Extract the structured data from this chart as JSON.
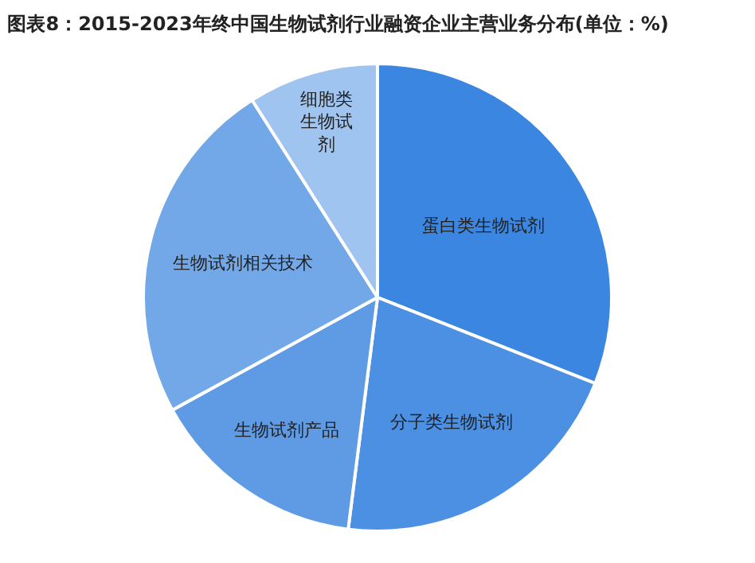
{
  "chart_data": {
    "type": "pie",
    "title": "图表8：2015-2023年终中国生物试剂行业融资企业主营业务分布(单位：%)",
    "categories": [
      "蛋白类生物试剂",
      "分子类生物试剂",
      "生物试剂产品",
      "生物试剂相关技术",
      "细胞类生物试剂"
    ],
    "values": [
      31,
      21,
      15,
      24,
      9
    ],
    "colors": [
      "#3b86e0",
      "#4b90e2",
      "#5e9be4",
      "#72a8e8",
      "#9fc4f0"
    ],
    "legend": false
  }
}
